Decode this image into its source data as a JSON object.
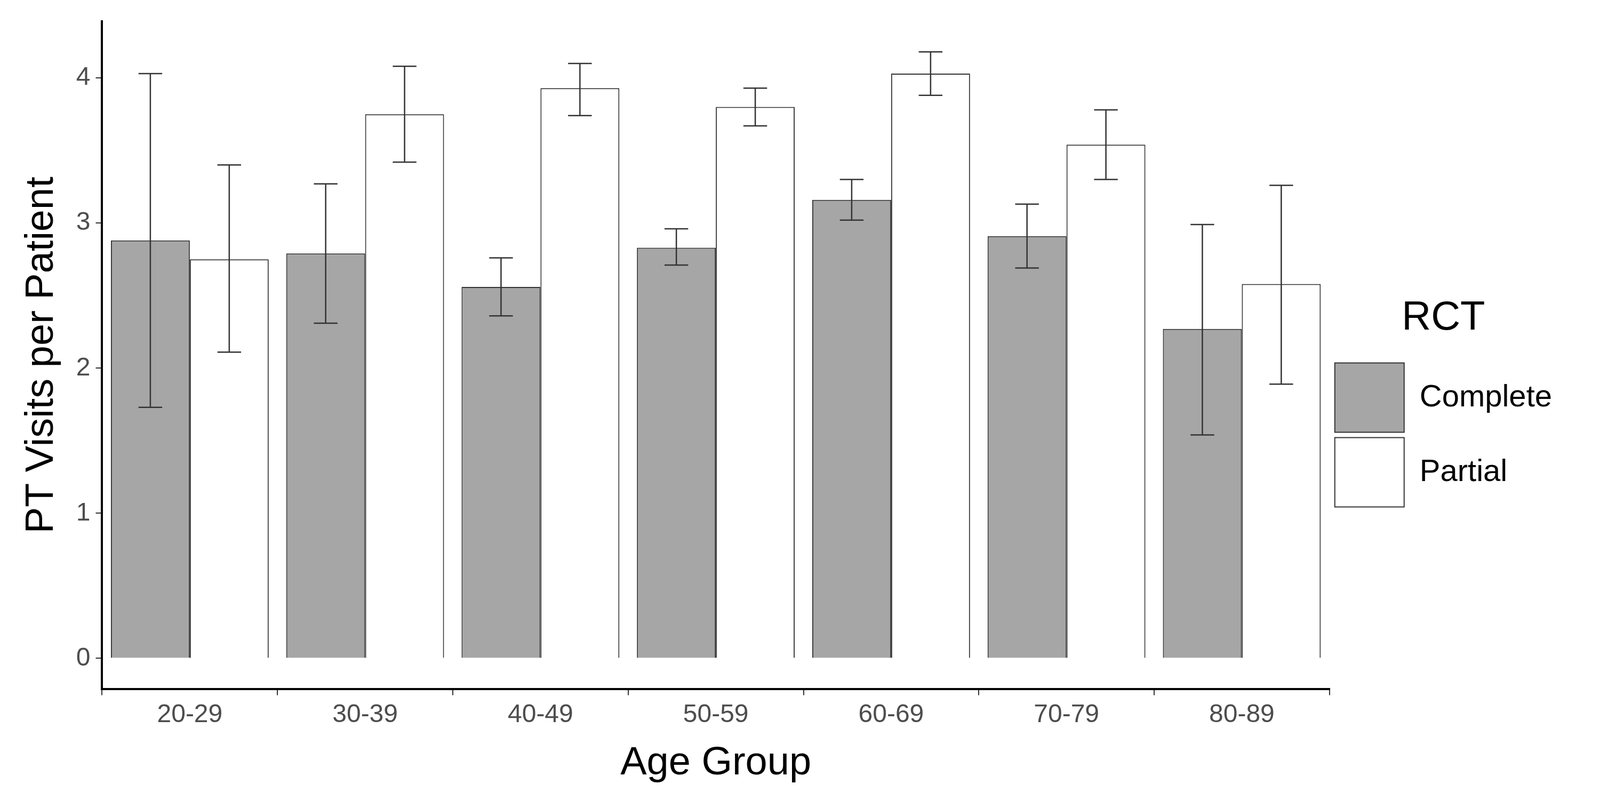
{
  "chart_data": {
    "type": "bar",
    "x_label": "Age Group",
    "y_label": "PT Visits per Patient",
    "legend_title": "RCT",
    "legend": "right",
    "grid": false,
    "categories": [
      "20-29",
      "30-39",
      "40-49",
      "50-59",
      "60-69",
      "70-79",
      "80-89"
    ],
    "series": [
      {
        "name": "Complete",
        "color": "#a6a6a6",
        "values": [
          2.88,
          2.79,
          2.56,
          2.83,
          3.16,
          2.91,
          2.27
        ],
        "error_low": [
          1.73,
          2.31,
          2.36,
          2.71,
          3.02,
          2.69,
          1.54
        ],
        "error_high": [
          4.03,
          3.27,
          2.76,
          2.96,
          3.3,
          3.13,
          2.99
        ]
      },
      {
        "name": "Partial",
        "color": "#ffffff",
        "values": [
          2.75,
          3.75,
          3.93,
          3.8,
          4.03,
          3.54,
          2.58
        ],
        "error_low": [
          2.11,
          3.42,
          3.74,
          3.67,
          3.88,
          3.3,
          1.89
        ],
        "error_high": [
          3.4,
          4.08,
          4.1,
          3.93,
          4.18,
          3.78,
          3.26
        ]
      }
    ],
    "ylim": [
      -0.21,
      4.39
    ],
    "yticks": [
      0,
      1,
      2,
      3,
      4
    ]
  }
}
